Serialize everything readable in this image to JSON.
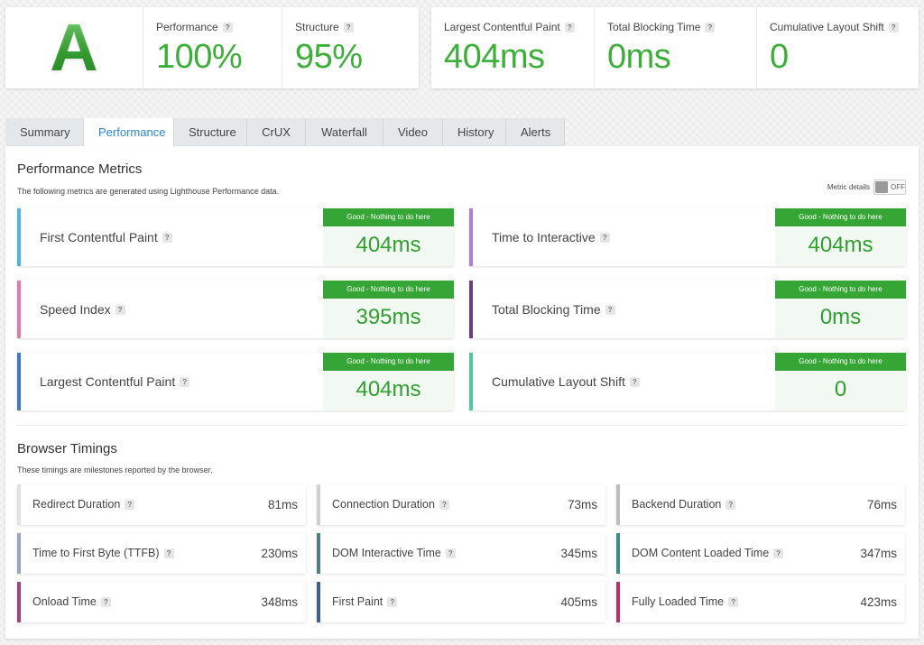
{
  "summary": {
    "grade": "A",
    "stats": [
      {
        "label": "Performance",
        "value": "100%"
      },
      {
        "label": "Structure",
        "value": "95%"
      }
    ],
    "vitals": [
      {
        "label": "Largest Contentful Paint",
        "value": "404ms"
      },
      {
        "label": "Total Blocking Time",
        "value": "0ms"
      },
      {
        "label": "Cumulative Layout Shift",
        "value": "0"
      }
    ],
    "help_glyph": "?"
  },
  "tabs": [
    {
      "label": "Summary",
      "active": false
    },
    {
      "label": "Performance",
      "active": true
    },
    {
      "label": "Structure",
      "active": false
    },
    {
      "label": "CrUX",
      "active": false
    },
    {
      "label": "Waterfall",
      "active": false
    },
    {
      "label": "Video",
      "active": false
    },
    {
      "label": "History",
      "active": false
    },
    {
      "label": "Alerts",
      "active": false
    }
  ],
  "metrics_section": {
    "title": "Performance Metrics",
    "description": "The following metrics are generated using Lighthouse Performance data.",
    "toggle_label": "Metric details",
    "toggle_state": "OFF",
    "metrics": [
      {
        "name": "First Contentful Paint",
        "badge": "Good - Nothing to do here",
        "value": "404ms",
        "color": "#4fb4e0"
      },
      {
        "name": "Time to Interactive",
        "badge": "Good - Nothing to do here",
        "value": "404ms",
        "color": "#b07fd3"
      },
      {
        "name": "Speed Index",
        "badge": "Good - Nothing to do here",
        "value": "395ms",
        "color": "#e57aa8"
      },
      {
        "name": "Total Blocking Time",
        "badge": "Good - Nothing to do here",
        "value": "0ms",
        "color": "#6b3f7a"
      },
      {
        "name": "Largest Contentful Paint",
        "badge": "Good - Nothing to do here",
        "value": "404ms",
        "color": "#3f78c8"
      },
      {
        "name": "Cumulative Layout Shift",
        "badge": "Good - Nothing to do here",
        "value": "0",
        "color": "#4fc6a0"
      }
    ]
  },
  "timings_section": {
    "title": "Browser Timings",
    "description": "These timings are milestones reported by the browser.",
    "timings": [
      {
        "name": "Redirect Duration",
        "value": "81ms",
        "color": "#e2e2e2"
      },
      {
        "name": "Connection Duration",
        "value": "73ms",
        "color": "#cfcfcf"
      },
      {
        "name": "Backend Duration",
        "value": "76ms",
        "color": "#bdbdbd"
      },
      {
        "name": "Time to First Byte (TTFB)",
        "value": "230ms",
        "color": "#9aa6bf"
      },
      {
        "name": "DOM Interactive Time",
        "value": "345ms",
        "color": "#4f7f86"
      },
      {
        "name": "DOM Content Loaded Time",
        "value": "347ms",
        "color": "#3e8a8a"
      },
      {
        "name": "Onload Time",
        "value": "348ms",
        "color": "#a8417a"
      },
      {
        "name": "First Paint",
        "value": "405ms",
        "color": "#3f5f8a"
      },
      {
        "name": "Fully Loaded Time",
        "value": "423ms",
        "color": "#b52f6e"
      }
    ]
  }
}
